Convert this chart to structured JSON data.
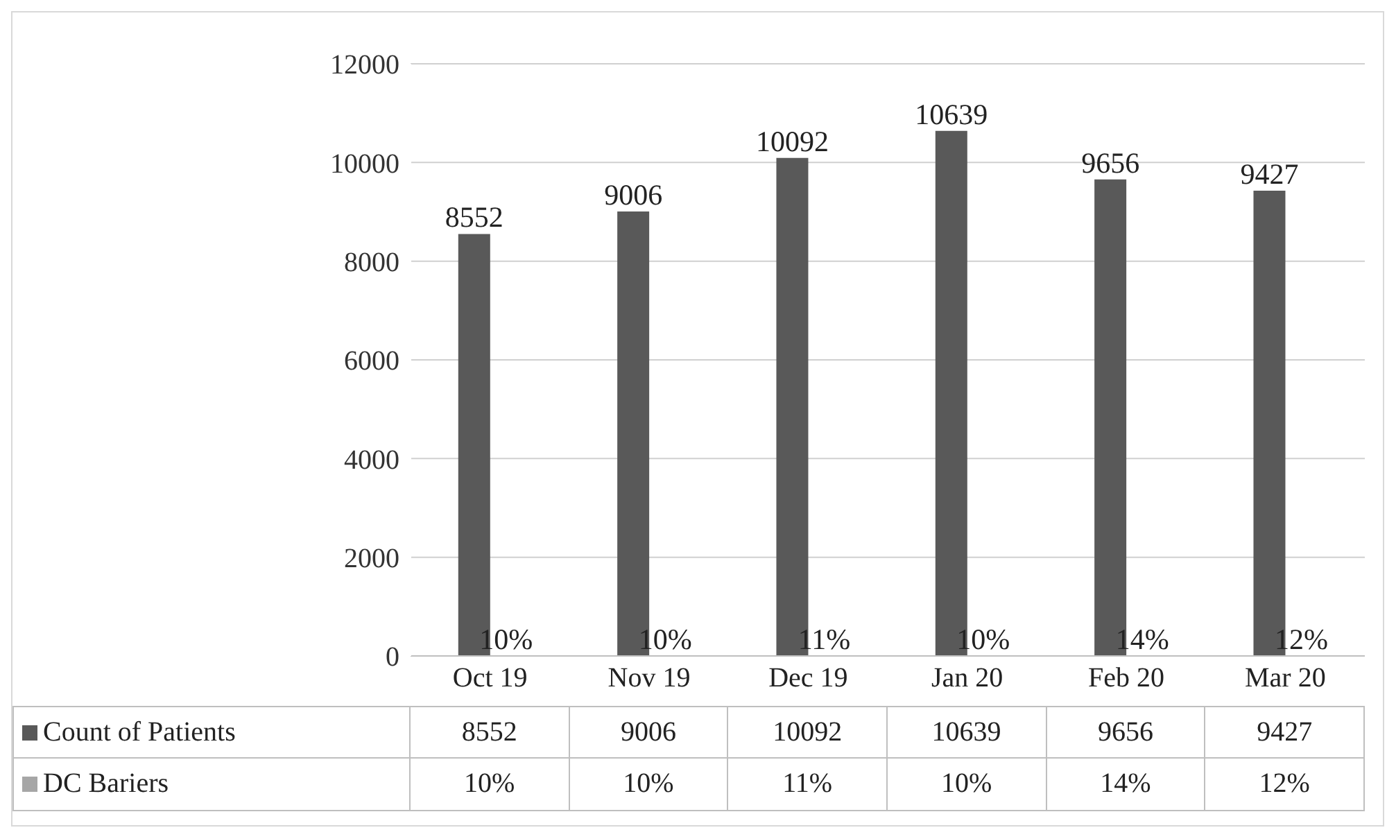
{
  "chart_data": {
    "type": "bar",
    "categories": [
      "Oct 19",
      "Nov 19",
      "Dec 19",
      "Jan 20",
      "Feb 20",
      "Mar 20"
    ],
    "series": [
      {
        "name": "Count of Patients",
        "color": "#595959",
        "values": [
          8552,
          9006,
          10092,
          10639,
          9656,
          9427
        ],
        "value_labels": [
          "8552",
          "9006",
          "10092",
          "10639",
          "9656",
          "9427"
        ]
      },
      {
        "name": "DC Bariers",
        "color": "#a6a6a6",
        "values": [
          0.1,
          0.1,
          0.11,
          0.1,
          0.14,
          0.12
        ],
        "value_labels": [
          "10%",
          "10%",
          "11%",
          "10%",
          "14%",
          "12%"
        ]
      }
    ],
    "ylim": [
      0,
      12000
    ],
    "yticks": [
      0,
      2000,
      4000,
      6000,
      8000,
      10000,
      12000
    ],
    "grid": "y",
    "legend": "bottom"
  }
}
